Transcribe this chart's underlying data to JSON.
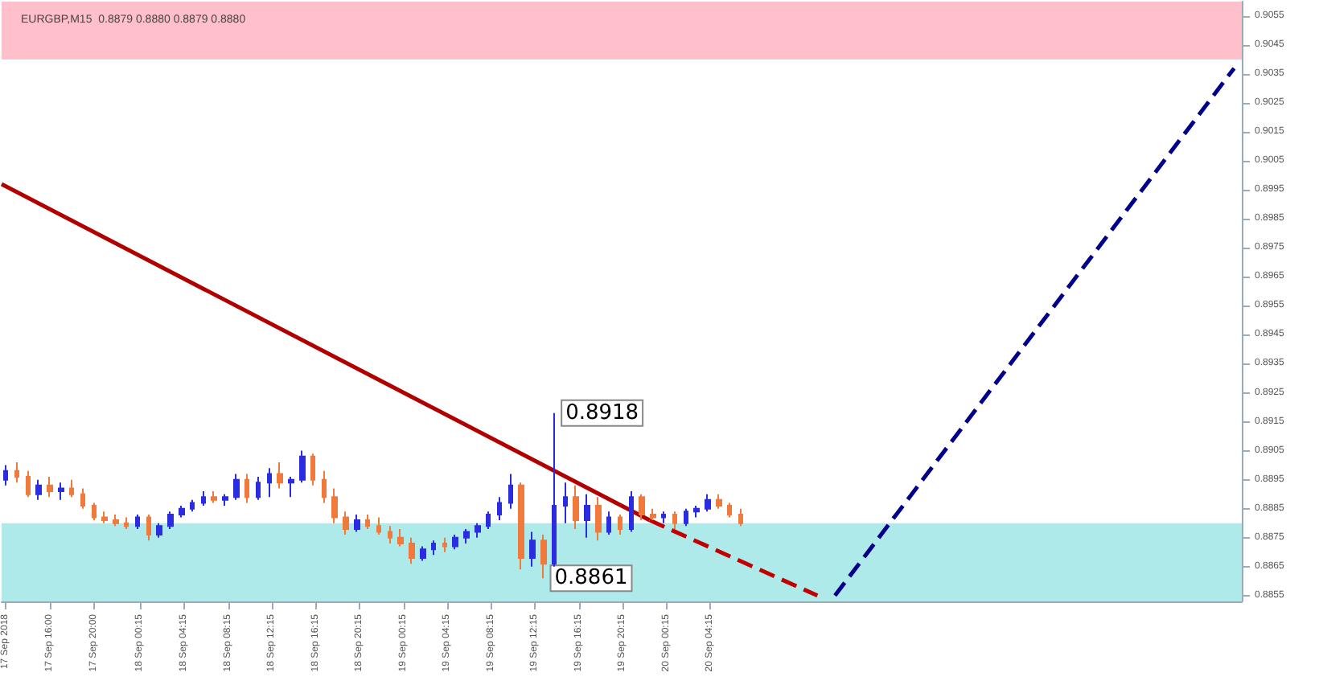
{
  "chart_data": {
    "type": "candlestick",
    "title": "EURGBP,M15  0.8879 0.8880 0.8879 0.8880",
    "xlim": [
      "2018-09-17T11:36",
      "2018-09-22T04:42"
    ],
    "xticks": [
      {
        "value": "2018-09-17T12:00",
        "label": "17 Sep 2018"
      },
      {
        "value": "2018-09-17T16:00",
        "label": "17 Sep 16:00"
      },
      {
        "value": "2018-09-17T20:00",
        "label": "17 Sep 20:00"
      },
      {
        "value": "2018-09-18T00:15",
        "label": "18 Sep 00:15"
      },
      {
        "value": "2018-09-18T04:15",
        "label": "18 Sep 04:15"
      },
      {
        "value": "2018-09-18T08:15",
        "label": "18 Sep 08:15"
      },
      {
        "value": "2018-09-18T12:15",
        "label": "18 Sep 12:15"
      },
      {
        "value": "2018-09-18T16:15",
        "label": "18 Sep 16:15"
      },
      {
        "value": "2018-09-18T20:15",
        "label": "18 Sep 20:15"
      },
      {
        "value": "2018-09-19T00:15",
        "label": "19 Sep 00:15"
      },
      {
        "value": "2018-09-19T04:15",
        "label": "19 Sep 04:15"
      },
      {
        "value": "2018-09-19T08:15",
        "label": "19 Sep 08:15"
      },
      {
        "value": "2018-09-19T12:15",
        "label": "19 Sep 12:15"
      },
      {
        "value": "2018-09-19T16:15",
        "label": "19 Sep 16:15"
      },
      {
        "value": "2018-09-19T20:15",
        "label": "19 Sep 20:15"
      },
      {
        "value": "2018-09-20T00:15",
        "label": "20 Sep 00:15"
      },
      {
        "value": "2018-09-20T04:15",
        "label": "20 Sep 04:15"
      }
    ],
    "ylim": [
      0.8853,
      0.906
    ],
    "yticks": [
      0.8855,
      0.8865,
      0.8875,
      0.8885,
      0.8895,
      0.8905,
      0.8915,
      0.8925,
      0.8935,
      0.8945,
      0.8955,
      0.8965,
      0.8975,
      0.8985,
      0.8995,
      0.9005,
      0.9015,
      0.9025,
      0.9035,
      0.9045,
      0.9055
    ],
    "grid": false,
    "marker": "none",
    "bands": [
      {
        "axis": "y",
        "from": 0.904,
        "to": 0.906,
        "color": "#ffc0cb"
      },
      {
        "axis": "y",
        "from": 0.8853,
        "to": 0.888,
        "color": "#aeeaea"
      }
    ],
    "annotations": [
      {
        "text": "0.8918",
        "x": "2018-09-19T14:00",
        "y": 0.8918
      },
      {
        "text": "0.8861",
        "x": "2018-09-19T13:00",
        "y": 0.8861
      }
    ],
    "series": [
      {
        "type": "candlestick",
        "x": [
          "2018-09-17T12:00",
          "2018-09-17T13:00",
          "2018-09-17T14:00",
          "2018-09-17T15:00",
          "2018-09-17T16:00",
          "2018-09-17T17:00",
          "2018-09-17T18:00",
          "2018-09-17T19:00",
          "2018-09-17T20:00",
          "2018-09-17T21:00",
          "2018-09-17T22:00",
          "2018-09-17T23:00",
          "2018-09-18T00:00",
          "2018-09-18T01:00",
          "2018-09-18T02:00",
          "2018-09-18T03:00",
          "2018-09-18T04:00",
          "2018-09-18T05:00",
          "2018-09-18T06:00",
          "2018-09-18T07:00",
          "2018-09-18T08:00",
          "2018-09-18T09:00",
          "2018-09-18T10:00",
          "2018-09-18T11:00",
          "2018-09-18T12:00",
          "2018-09-18T13:00",
          "2018-09-18T14:00",
          "2018-09-18T15:00",
          "2018-09-18T16:00",
          "2018-09-18T17:00",
          "2018-09-18T18:00",
          "2018-09-18T19:00",
          "2018-09-18T20:00",
          "2018-09-18T21:00",
          "2018-09-18T22:00",
          "2018-09-18T23:00",
          "2018-09-19T00:00",
          "2018-09-19T01:00",
          "2018-09-19T02:00",
          "2018-09-19T03:00",
          "2018-09-19T04:00",
          "2018-09-19T05:00",
          "2018-09-19T06:00",
          "2018-09-19T07:00",
          "2018-09-19T08:00",
          "2018-09-19T09:00",
          "2018-09-19T10:00",
          "2018-09-19T11:00",
          "2018-09-19T12:00",
          "2018-09-19T13:00",
          "2018-09-19T14:00",
          "2018-09-19T15:00",
          "2018-09-19T16:00",
          "2018-09-19T17:00",
          "2018-09-19T18:00",
          "2018-09-19T19:00",
          "2018-09-19T20:00",
          "2018-09-19T21:00",
          "2018-09-19T22:00",
          "2018-09-19T23:00",
          "2018-09-20T00:00",
          "2018-09-20T01:00",
          "2018-09-20T02:00",
          "2018-09-20T03:00",
          "2018-09-20T04:00",
          "2018-09-20T05:00",
          "2018-09-20T06:00",
          "2018-09-20T07:00"
        ],
        "ohlc": [
          [
            0.8895,
            0.89,
            0.8893,
            0.8898
          ],
          [
            0.8898,
            0.8901,
            0.8894,
            0.8896
          ],
          [
            0.8896,
            0.8898,
            0.8889,
            0.889
          ],
          [
            0.889,
            0.8895,
            0.8888,
            0.8893
          ],
          [
            0.8893,
            0.8896,
            0.8889,
            0.8891
          ],
          [
            0.8891,
            0.8894,
            0.8888,
            0.8892
          ],
          [
            0.8892,
            0.8895,
            0.8889,
            0.889
          ],
          [
            0.889,
            0.8892,
            0.8885,
            0.8886
          ],
          [
            0.8886,
            0.8887,
            0.8881,
            0.8882
          ],
          [
            0.8882,
            0.8884,
            0.888,
            0.8881
          ],
          [
            0.8881,
            0.8883,
            0.8879,
            0.888
          ],
          [
            0.888,
            0.8882,
            0.8878,
            0.8879
          ],
          [
            0.8879,
            0.8883,
            0.8878,
            0.8882
          ],
          [
            0.8882,
            0.8883,
            0.8874,
            0.8876
          ],
          [
            0.8876,
            0.888,
            0.8875,
            0.8879
          ],
          [
            0.8879,
            0.8884,
            0.8878,
            0.8883
          ],
          [
            0.8883,
            0.8886,
            0.8882,
            0.8885
          ],
          [
            0.8885,
            0.8888,
            0.8884,
            0.8887
          ],
          [
            0.8887,
            0.8891,
            0.8886,
            0.8889
          ],
          [
            0.8889,
            0.8891,
            0.8887,
            0.8888
          ],
          [
            0.8888,
            0.889,
            0.8886,
            0.8889
          ],
          [
            0.8889,
            0.8897,
            0.8888,
            0.8895
          ],
          [
            0.8895,
            0.8897,
            0.8887,
            0.8889
          ],
          [
            0.8889,
            0.8896,
            0.8888,
            0.8894
          ],
          [
            0.8894,
            0.8899,
            0.8889,
            0.8897
          ],
          [
            0.8897,
            0.8901,
            0.8892,
            0.8894
          ],
          [
            0.8894,
            0.8896,
            0.8889,
            0.8895
          ],
          [
            0.8895,
            0.8905,
            0.8894,
            0.8903
          ],
          [
            0.8903,
            0.8904,
            0.8893,
            0.8895
          ],
          [
            0.8895,
            0.8898,
            0.8887,
            0.8889
          ],
          [
            0.8889,
            0.8892,
            0.888,
            0.8882
          ],
          [
            0.8882,
            0.8884,
            0.8876,
            0.8878
          ],
          [
            0.8878,
            0.8883,
            0.8877,
            0.8881
          ],
          [
            0.8881,
            0.8883,
            0.8878,
            0.8879
          ],
          [
            0.8879,
            0.8882,
            0.8876,
            0.8877
          ],
          [
            0.8877,
            0.8879,
            0.8873,
            0.8875
          ],
          [
            0.8875,
            0.8878,
            0.8872,
            0.8873
          ],
          [
            0.8873,
            0.8875,
            0.8866,
            0.8868
          ],
          [
            0.8868,
            0.8872,
            0.8867,
            0.8871
          ],
          [
            0.8871,
            0.8874,
            0.8869,
            0.8873
          ],
          [
            0.8873,
            0.8875,
            0.887,
            0.8872
          ],
          [
            0.8872,
            0.8876,
            0.8871,
            0.8875
          ],
          [
            0.8875,
            0.8878,
            0.8873,
            0.8877
          ],
          [
            0.8877,
            0.888,
            0.8875,
            0.8879
          ],
          [
            0.8879,
            0.8884,
            0.8878,
            0.8883
          ],
          [
            0.8883,
            0.8889,
            0.8881,
            0.8887
          ],
          [
            0.8887,
            0.8897,
            0.8885,
            0.8893
          ],
          [
            0.8893,
            0.8894,
            0.8864,
            0.8868
          ],
          [
            0.8868,
            0.8877,
            0.8865,
            0.8874
          ],
          [
            0.8874,
            0.8876,
            0.8861,
            0.8866
          ],
          [
            0.8866,
            0.8918,
            0.8865,
            0.8886
          ],
          [
            0.8886,
            0.8894,
            0.888,
            0.8889
          ],
          [
            0.8889,
            0.8893,
            0.8878,
            0.8881
          ],
          [
            0.8881,
            0.889,
            0.8875,
            0.8886
          ],
          [
            0.8886,
            0.8889,
            0.8874,
            0.8877
          ],
          [
            0.8877,
            0.8884,
            0.8876,
            0.8882
          ],
          [
            0.8882,
            0.8883,
            0.8876,
            0.8878
          ],
          [
            0.8878,
            0.8891,
            0.8877,
            0.8889
          ],
          [
            0.8889,
            0.889,
            0.8881,
            0.8883
          ],
          [
            0.8883,
            0.8885,
            0.8881,
            0.8882
          ],
          [
            0.8882,
            0.8884,
            0.888,
            0.8883
          ],
          [
            0.8883,
            0.8884,
            0.8878,
            0.888
          ],
          [
            0.888,
            0.8885,
            0.8879,
            0.8884
          ],
          [
            0.8884,
            0.8886,
            0.8882,
            0.8885
          ],
          [
            0.8885,
            0.889,
            0.8884,
            0.8888
          ],
          [
            0.8888,
            0.889,
            0.8885,
            0.8886
          ],
          [
            0.8886,
            0.8887,
            0.8882,
            0.8883
          ],
          [
            0.8883,
            0.8885,
            0.8879,
            0.888
          ]
        ],
        "colors": [
          "#2b2be0",
          "#f07a3c",
          "#f07a3c",
          "#2b2be0",
          "#f07a3c",
          "#2b2be0",
          "#f07a3c",
          "#f07a3c",
          "#f07a3c",
          "#f07a3c",
          "#f07a3c",
          "#f07a3c",
          "#2b2be0",
          "#f07a3c",
          "#2b2be0",
          "#2b2be0",
          "#2b2be0",
          "#2b2be0",
          "#2b2be0",
          "#f07a3c",
          "#2b2be0",
          "#2b2be0",
          "#f07a3c",
          "#2b2be0",
          "#2b2be0",
          "#f07a3c",
          "#2b2be0",
          "#2b2be0",
          "#f07a3c",
          "#f07a3c",
          "#f07a3c",
          "#f07a3c",
          "#2b2be0",
          "#f07a3c",
          "#f07a3c",
          "#f07a3c",
          "#f07a3c",
          "#f07a3c",
          "#2b2be0",
          "#2b2be0",
          "#f07a3c",
          "#2b2be0",
          "#2b2be0",
          "#2b2be0",
          "#2b2be0",
          "#2b2be0",
          "#2b2be0",
          "#f07a3c",
          "#2b2be0",
          "#f07a3c",
          "#2b2be0",
          "#2b2be0",
          "#f07a3c",
          "#2b2be0",
          "#f07a3c",
          "#2b2be0",
          "#f07a3c",
          "#2b2be0",
          "#f07a3c",
          "#f07a3c",
          "#2b2be0",
          "#f07a3c",
          "#2b2be0",
          "#2b2be0",
          "#2b2be0",
          "#f07a3c",
          "#f07a3c",
          "#f07a3c"
        ]
      },
      {
        "type": "line",
        "x": [
          "2018-09-17T11:36",
          "2018-09-19T22:42"
        ],
        "values": [
          0.8997,
          0.8881
        ],
        "color": "#b00000",
        "line_style": "solid"
      },
      {
        "type": "line",
        "x": [
          "2018-09-19T22:42",
          "2018-09-20T14:00"
        ],
        "values": [
          0.8881,
          0.8855
        ],
        "color": "#c00000",
        "line_style": "dashed"
      },
      {
        "type": "line",
        "x": [
          "2018-09-20T15:36",
          "2018-09-22T04:00"
        ],
        "values": [
          0.8855,
          0.9037
        ],
        "color": "#00008b",
        "line_style": "dashed"
      }
    ]
  }
}
